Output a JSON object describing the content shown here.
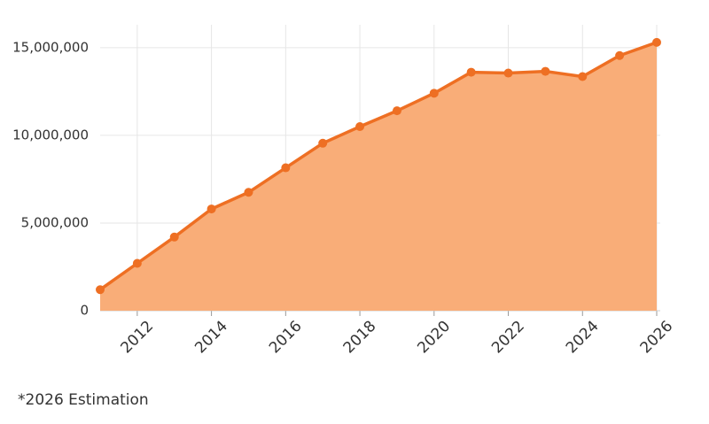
{
  "chart_data": {
    "type": "area",
    "x": [
      2011,
      2012,
      2013,
      2014,
      2015,
      2016,
      2017,
      2018,
      2019,
      2020,
      2021,
      2022,
      2023,
      2024,
      2025,
      2026
    ],
    "series": [
      {
        "color": "#ee6f23",
        "fill": "#f9ad78",
        "values": [
          1200000,
          2700000,
          4200000,
          5800000,
          6750000,
          8150000,
          9550000,
          10500000,
          11400000,
          12400000,
          13600000,
          13550000,
          13650000,
          13350000,
          14550000,
          15300000
        ]
      }
    ],
    "xlim": [
      2011,
      2026
    ],
    "xticks": [
      2012,
      2014,
      2016,
      2018,
      2020,
      2022,
      2024,
      2026
    ],
    "ylim": [
      0,
      15900000
    ],
    "yticks": [
      0,
      {
        "value": 5000000,
        "label": "5,000,000"
      },
      {
        "value": 10000000,
        "label": "10,000,000"
      },
      {
        "value": 15000000,
        "label": "15,000,000"
      }
    ],
    "grid": true,
    "annotation": "*2026 Estimation"
  }
}
